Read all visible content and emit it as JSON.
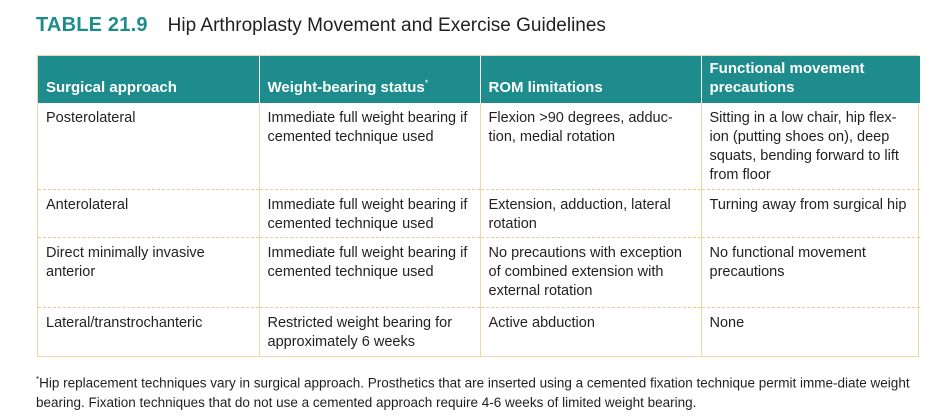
{
  "title": {
    "number": "TABLE 21.9",
    "text": "Hip Arthroplasty Movement and Exercise Guidelines"
  },
  "table": {
    "headers": [
      "Surgical approach",
      "Weight-bearing status",
      "ROM limitations",
      "Functional movement precautions"
    ],
    "header_marker": "*",
    "rows": [
      {
        "approach": "Posterolateral",
        "weight_bearing": "Immediate full weight bearing if cemented technique used",
        "rom": "Flexion >90 degrees, adduc-tion, medial rotation",
        "precautions": "Sitting in a low chair, hip flex-ion (putting shoes on), deep squats, bending forward to lift from floor"
      },
      {
        "approach": "Anterolateral",
        "weight_bearing": "Immediate full weight bearing if cemented technique used",
        "rom": "Extension, adduction, lateral rotation",
        "precautions": "Turning away from surgical hip"
      },
      {
        "approach": "Direct minimally invasive anterior",
        "weight_bearing": "Immediate full weight bearing if cemented technique used",
        "rom": "No precautions with exception of combined extension with external rotation",
        "precautions": "No functional movement precautions"
      },
      {
        "approach": "Lateral/transtrochanteric",
        "weight_bearing": "Restricted weight bearing for approximately 6 weeks",
        "rom": "Active abduction",
        "precautions": "None"
      }
    ]
  },
  "footnote": {
    "marker": "*",
    "text": "Hip replacement techniques vary in surgical approach. Prosthetics that are inserted using a cemented fixation technique permit imme-diate weight bearing. Fixation techniques that do not use a cemented approach require 4-6 weeks of limited weight bearing."
  },
  "colors": {
    "header_background": "#1e8c8c",
    "title_accent": "#1e8c8c",
    "rule": "#f2c98a"
  }
}
